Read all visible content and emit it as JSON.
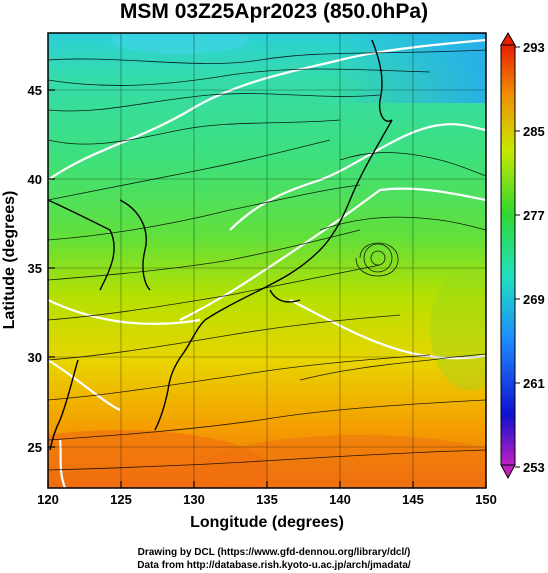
{
  "title": "MSM 03Z25Apr2023 (850.0hPa)",
  "credits": {
    "line1": "Drawing by DCL (https://www.gfd-dennou.org/library/dcl/)",
    "line2": "Data from http://database.rish.kyoto-u.ac.jp/arch/jmadata/"
  },
  "axes": {
    "xlabel": "Longitude (degrees)",
    "ylabel": "Latitude  (degrees)",
    "x_ticks": [
      "120",
      "125",
      "130",
      "135",
      "140",
      "145",
      "150"
    ],
    "y_ticks": [
      "25",
      "30",
      "35",
      "40",
      "45"
    ],
    "xlim": [
      120,
      150
    ],
    "ylim": [
      22.5,
      48
    ]
  },
  "colorbar": {
    "ticks": [
      "293",
      "285",
      "277",
      "269",
      "261",
      "253"
    ],
    "range": [
      253,
      293
    ]
  },
  "colors": {
    "warm": "#f07010",
    "mid": "#8fd400",
    "cool": "#3fe0a8",
    "cold": "#26a8f0"
  }
}
